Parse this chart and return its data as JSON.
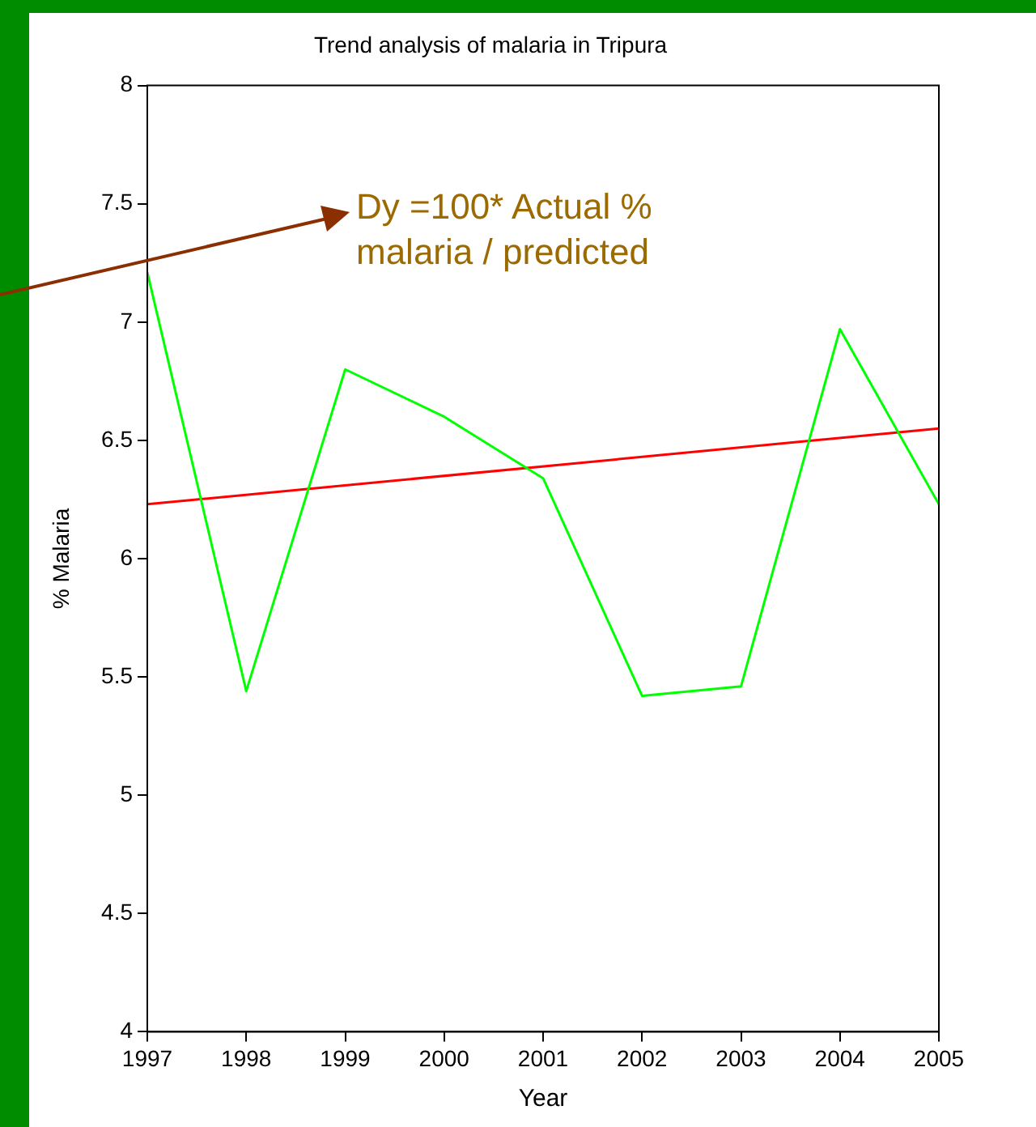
{
  "chart_data": {
    "type": "line",
    "title": "Trend analysis of malaria in Tripura",
    "xlabel": "Year",
    "ylabel": "% Malaria",
    "annotations": [
      "Dy =100* Actual % malaria / predicted"
    ],
    "x": [
      1997,
      1998,
      1999,
      2000,
      2001,
      2002,
      2003,
      2004,
      2005
    ],
    "series": [
      {
        "color": "#00ff00",
        "values": [
          7.21,
          5.44,
          6.8,
          6.6,
          6.34,
          5.42,
          5.46,
          6.97,
          6.23
        ]
      },
      {
        "type": "line",
        "color": "#ff0000",
        "x": [
          1997,
          2005
        ],
        "values": [
          6.23,
          6.55
        ]
      }
    ],
    "xlim": [
      1997,
      2005
    ],
    "xticks": [
      1997,
      1998,
      1999,
      2000,
      2001,
      2002,
      2003,
      2004,
      2005
    ],
    "ylim": [
      4,
      8
    ],
    "yticks": [
      4,
      4.5,
      5,
      5.5,
      6,
      6.5,
      7,
      7.5,
      8
    ],
    "grid": false,
    "legend": false,
    "marker": "none",
    "line_style": "solid"
  }
}
